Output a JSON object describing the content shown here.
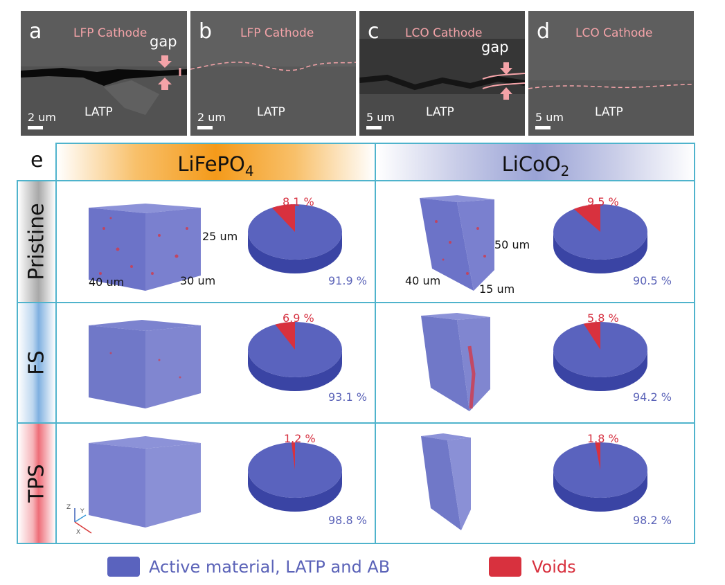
{
  "sem_panels": [
    {
      "letter": "a",
      "cathode": "LFP Cathode",
      "substrate": "LATP",
      "scale": "2 um",
      "gap_label": "gap"
    },
    {
      "letter": "b",
      "cathode": "LFP Cathode",
      "substrate": "LATP",
      "scale": "2 um",
      "gap_label": ""
    },
    {
      "letter": "c",
      "cathode": "LCO Cathode",
      "substrate": "LATP",
      "scale": "5 um",
      "gap_label": "gap"
    },
    {
      "letter": "d",
      "cathode": "LCO Cathode",
      "substrate": "LATP",
      "scale": "5 um",
      "gap_label": ""
    }
  ],
  "panel_e": {
    "letter": "e",
    "columns": {
      "lfp": {
        "title": "LiFePO",
        "subscript": "4"
      },
      "lco": {
        "title": "LiCoO",
        "subscript": "2"
      }
    },
    "rows": [
      "Pristine",
      "FS",
      "TPS"
    ],
    "dimensions": {
      "lfp": {
        "a": "25 um",
        "b": "40 um",
        "c": "30 um"
      },
      "lco": {
        "a": "50 um",
        "b": "40 um",
        "c": "15 um"
      }
    },
    "axis_labels": {
      "z": "Z",
      "y": "Y",
      "x": "X"
    }
  },
  "chart_data": {
    "type": "pie",
    "series_names": [
      "Active material, LATP and AB",
      "Voids"
    ],
    "colors": {
      "active": "#5a63be",
      "voids": "#d8313e"
    },
    "pies": [
      {
        "row": "Pristine",
        "material": "LiFePO4",
        "voids": 8.1,
        "active": 91.9,
        "voids_label": "8.1 %",
        "active_label": "91.9 %"
      },
      {
        "row": "Pristine",
        "material": "LiCoO2",
        "voids": 9.5,
        "active": 90.5,
        "voids_label": "9.5 %",
        "active_label": "90.5 %"
      },
      {
        "row": "FS",
        "material": "LiFePO4",
        "voids": 6.9,
        "active": 93.1,
        "voids_label": "6.9 %",
        "active_label": "93.1 %"
      },
      {
        "row": "FS",
        "material": "LiCoO2",
        "voids": 5.8,
        "active": 94.2,
        "voids_label": "5.8 %",
        "active_label": "94.2 %"
      },
      {
        "row": "TPS",
        "material": "LiFePO4",
        "voids": 1.2,
        "active": 98.8,
        "voids_label": "1.2 %",
        "active_label": "98.8 %"
      },
      {
        "row": "TPS",
        "material": "LiCoO2",
        "voids": 1.8,
        "active": 98.2,
        "voids_label": "1.8 %",
        "active_label": "98.2 %"
      }
    ]
  },
  "legend": {
    "active_label": "Active material, LATP and AB",
    "voids_label": "Voids"
  }
}
